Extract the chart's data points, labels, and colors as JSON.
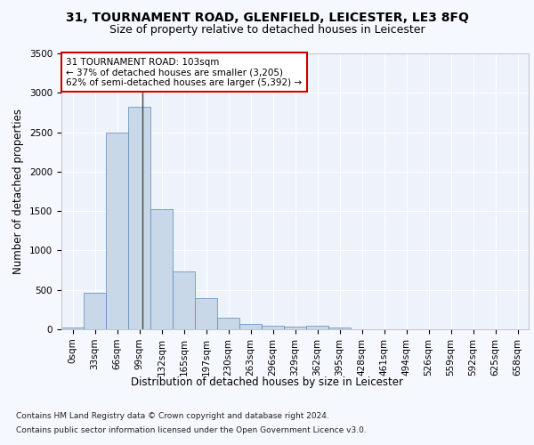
{
  "title": "31, TOURNAMENT ROAD, GLENFIELD, LEICESTER, LE3 8FQ",
  "subtitle": "Size of property relative to detached houses in Leicester",
  "xlabel": "Distribution of detached houses by size in Leicester",
  "ylabel": "Number of detached properties",
  "bar_color": "#c8d8e8",
  "bar_edge_color": "#5588bb",
  "background_color": "#f5f8ff",
  "plot_bg_color": "#eef2fb",
  "grid_color": "#ffffff",
  "categories": [
    "0sqm",
    "33sqm",
    "66sqm",
    "99sqm",
    "132sqm",
    "165sqm",
    "197sqm",
    "230sqm",
    "263sqm",
    "296sqm",
    "329sqm",
    "362sqm",
    "395sqm",
    "428sqm",
    "461sqm",
    "494sqm",
    "526sqm",
    "559sqm",
    "592sqm",
    "625sqm",
    "658sqm"
  ],
  "values": [
    20,
    460,
    2500,
    2820,
    1520,
    730,
    390,
    145,
    70,
    45,
    30,
    50,
    20,
    0,
    0,
    0,
    0,
    0,
    0,
    0,
    0
  ],
  "ylim": [
    0,
    3500
  ],
  "yticks": [
    0,
    500,
    1000,
    1500,
    2000,
    2500,
    3000,
    3500
  ],
  "property_label": "31 TOURNAMENT ROAD: 103sqm",
  "annotation_line1": "← 37% of detached houses are smaller (3,205)",
  "annotation_line2": "62% of semi-detached houses are larger (5,392) →",
  "annotation_box_color": "#ffffff",
  "annotation_box_edge_color": "#cc0000",
  "property_line_x": 3.15,
  "footer1": "Contains HM Land Registry data © Crown copyright and database right 2024.",
  "footer2": "Contains public sector information licensed under the Open Government Licence v3.0.",
  "title_fontsize": 10,
  "subtitle_fontsize": 9,
  "axis_label_fontsize": 8.5,
  "tick_fontsize": 7.5,
  "annotation_fontsize": 7.5,
  "footer_fontsize": 6.5
}
